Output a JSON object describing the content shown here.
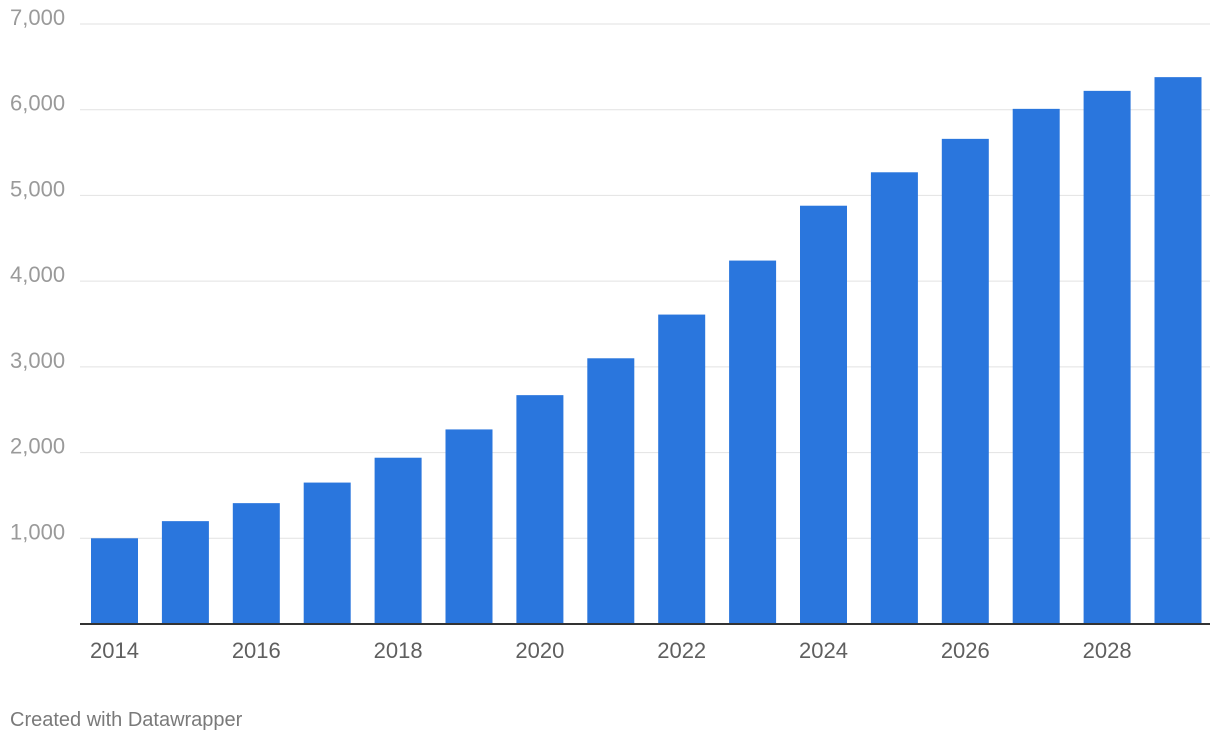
{
  "chart_data": {
    "type": "bar",
    "categories": [
      "2014",
      "2015",
      "2016",
      "2017",
      "2018",
      "2019",
      "2020",
      "2021",
      "2022",
      "2023",
      "2024",
      "2025",
      "2026",
      "2027",
      "2028",
      "2029"
    ],
    "values": [
      1000,
      1200,
      1410,
      1650,
      1940,
      2270,
      2670,
      3100,
      3610,
      4240,
      4880,
      5270,
      5660,
      6010,
      6220,
      6380
    ],
    "x_tick_labels": [
      "2014",
      "2016",
      "2018",
      "2020",
      "2022",
      "2024",
      "2026",
      "2028"
    ],
    "y_ticks": [
      1000,
      2000,
      3000,
      4000,
      5000,
      6000,
      7000
    ],
    "y_tick_labels": [
      "1,000",
      "2,000",
      "3,000",
      "4,000",
      "5,000",
      "6,000",
      "7,000"
    ],
    "ylim": [
      0,
      7000
    ],
    "grid": true,
    "bar_color": "#2a76dd",
    "title": "",
    "xlabel": "",
    "ylabel": ""
  },
  "footer": {
    "credit": "Created with Datawrapper"
  }
}
